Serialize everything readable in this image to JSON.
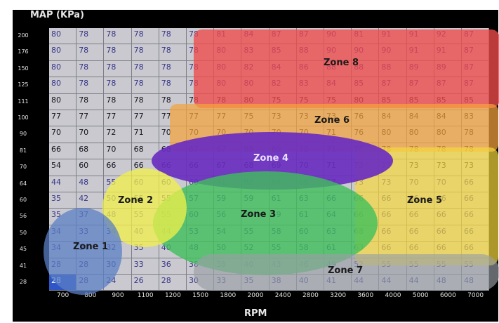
{
  "map_title": "MAP (KPa)",
  "x_axis_label": "RPM",
  "row_labels": [
    "200",
    "176",
    "150",
    "125",
    "111",
    "100",
    "90",
    "81",
    "70",
    "64",
    "60",
    "56",
    "50",
    "45",
    "41",
    "28"
  ],
  "col_labels": [
    "700",
    "800",
    "900",
    "1100",
    "1200",
    "1500",
    "1800",
    "2000",
    "2400",
    "2800",
    "3200",
    "3600",
    "4000",
    "5000",
    "6000",
    "7000"
  ],
  "table": [
    [
      "80",
      "78",
      "78",
      "78",
      "78",
      "78",
      "81",
      "84",
      "87",
      "87",
      "90",
      "81",
      "91",
      "91",
      "92",
      "87"
    ],
    [
      "80",
      "78",
      "78",
      "78",
      "78",
      "78",
      "80",
      "83",
      "85",
      "88",
      "90",
      "90",
      "90",
      "91",
      "91",
      "87"
    ],
    [
      "80",
      "78",
      "78",
      "78",
      "78",
      "78",
      "80",
      "82",
      "84",
      "86",
      "88",
      "88",
      "88",
      "89",
      "89",
      "87"
    ],
    [
      "80",
      "78",
      "78",
      "78",
      "78",
      "78",
      "80",
      "80",
      "82",
      "83",
      "84",
      "85",
      "87",
      "87",
      "87",
      "87"
    ],
    [
      "80",
      "78",
      "78",
      "78",
      "78",
      "78",
      "78",
      "80",
      "75",
      "75",
      "75",
      "80",
      "85",
      "85",
      "85",
      "85"
    ],
    [
      "77",
      "77",
      "77",
      "77",
      "77",
      "77",
      "77",
      "75",
      "73",
      "73",
      "73",
      "76",
      "84",
      "84",
      "84",
      "83"
    ],
    [
      "70",
      "70",
      "72",
      "71",
      "70",
      "70",
      "70",
      "70",
      "70",
      "70",
      "71",
      "76",
      "80",
      "80",
      "80",
      "78"
    ],
    [
      "66",
      "68",
      "70",
      "68",
      "68",
      "67",
      "67",
      "68",
      "69",
      "70",
      "71",
      "76",
      "78",
      "78",
      "78",
      "78"
    ],
    [
      "54",
      "60",
      "66",
      "66",
      "66",
      "66",
      "67",
      "68",
      "69",
      "70",
      "71",
      "73",
      "73",
      "73",
      "73",
      "73"
    ],
    [
      "44",
      "48",
      "55",
      "60",
      "60",
      "60",
      "61",
      "62",
      "64",
      "66",
      "67",
      "73",
      "73",
      "70",
      "70",
      "66"
    ],
    [
      "35",
      "42",
      "50",
      "55",
      "55",
      "57",
      "59",
      "59",
      "61",
      "63",
      "66",
      "66",
      "66",
      "66",
      "66",
      "66"
    ],
    [
      "35",
      "37",
      "48",
      "55",
      "55",
      "60",
      "56",
      "59",
      "59",
      "61",
      "64",
      "66",
      "66",
      "66",
      "66",
      "66"
    ],
    [
      "34",
      "33",
      "34",
      "40",
      "44",
      "53",
      "54",
      "55",
      "58",
      "60",
      "63",
      "68",
      "66",
      "66",
      "66",
      "66"
    ],
    [
      "34",
      "34",
      "32",
      "35",
      "40",
      "48",
      "50",
      "52",
      "55",
      "58",
      "61",
      "63",
      "66",
      "66",
      "66",
      "66"
    ],
    [
      "28",
      "28",
      "30",
      "33",
      "36",
      "38",
      "38",
      "40",
      "43",
      "46",
      "49",
      "52",
      "55",
      "55",
      "55",
      "55"
    ],
    [
      "28",
      "28",
      "24",
      "26",
      "28",
      "30",
      "33",
      "35",
      "38",
      "40",
      "41",
      "44",
      "44",
      "44",
      "48",
      "48"
    ]
  ],
  "highlighted_cell": {
    "row": 15,
    "col": 0
  },
  "zones": [
    {
      "label": "Zone 8",
      "color": "#f04a4a"
    },
    {
      "label": "Zone 6",
      "color": "#f5a33c"
    },
    {
      "label": "Zone 5",
      "color": "#f5d93c"
    },
    {
      "label": "Zone 4",
      "color": "#6a2cc0"
    },
    {
      "label": "Zone 3",
      "color": "#3fbf5a"
    },
    {
      "label": "Zone 2",
      "color": "#f2f04a"
    },
    {
      "label": "Zone 1",
      "color": "#5b7fc4"
    },
    {
      "label": "Zone 7",
      "color": "#9aa0a6"
    }
  ]
}
